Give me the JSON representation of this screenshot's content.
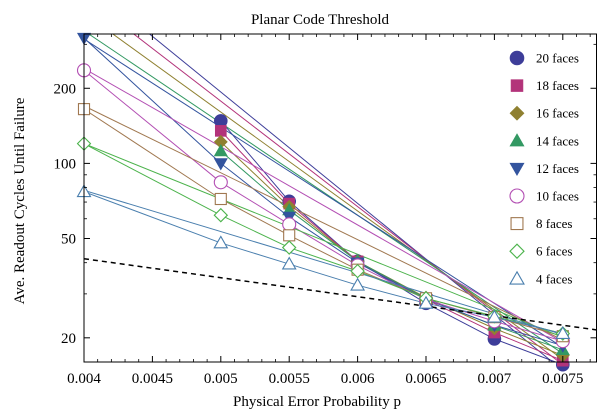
{
  "chart_data": {
    "type": "line",
    "title": "Planar Code Threshold",
    "xlabel": "Physical Error Probability p",
    "ylabel": "Ave. Readout Cycles Until Failure",
    "x_scale": "linear",
    "y_scale": "log",
    "xlim": [
      0.004,
      0.00775
    ],
    "ylim": [
      16,
      330
    ],
    "x_ticks": [
      0.004,
      0.0045,
      0.005,
      0.0055,
      0.006,
      0.0065,
      0.007,
      0.0075
    ],
    "x_tick_labels": [
      "0.004",
      "0.0045",
      "0.005",
      "0.0055",
      "0.006",
      "0.0065",
      "0.007",
      "0.0075"
    ],
    "y_ticks": [
      20,
      50,
      100,
      200
    ],
    "y_tick_labels": [
      "20",
      "50",
      "100",
      "200"
    ],
    "legend_position": "right",
    "series": [
      {
        "name": "20 faces",
        "color": "#3d3d99",
        "marker": "filled-circle",
        "fit": [
          [
            0.004,
            540
          ],
          [
            0.0075,
            14.8
          ]
        ],
        "x": [
          0.005,
          0.0055,
          0.006,
          0.0065,
          0.007,
          0.0075
        ],
        "y": [
          148,
          70.5,
          40.5,
          27.5,
          19.8,
          15.6
        ]
      },
      {
        "name": "18 faces",
        "color": "#b3337a",
        "marker": "filled-square",
        "fit": [
          [
            0.004,
            470
          ],
          [
            0.0075,
            15.6
          ]
        ],
        "x": [
          0.005,
          0.0055,
          0.006,
          0.0065,
          0.007,
          0.0075
        ],
        "y": [
          135,
          69,
          40.5,
          28.5,
          21,
          16.2
        ]
      },
      {
        "name": "16 faces",
        "color": "#8f8030",
        "marker": "filled-diamond",
        "fit": [
          [
            0.004,
            400
          ],
          [
            0.0075,
            16.4
          ]
        ],
        "x": [
          0.005,
          0.0055,
          0.006,
          0.0065,
          0.007,
          0.0075
        ],
        "y": [
          122,
          67,
          40.5,
          29,
          21.8,
          17
        ]
      },
      {
        "name": "14 faces",
        "color": "#339963",
        "marker": "filled-triangle-up",
        "fit": [
          [
            0.004,
            340
          ],
          [
            0.0075,
            17.3
          ]
        ],
        "x": [
          0.005,
          0.0055,
          0.006,
          0.0065,
          0.007,
          0.0075
        ],
        "y": [
          112,
          65,
          40.5,
          28.8,
          22.4,
          17.9
        ]
      },
      {
        "name": "12 faces",
        "color": "#33549e",
        "marker": "filled-triangle-down",
        "fit": [
          [
            0.004,
            315
          ],
          [
            0.0075,
            18.3
          ]
        ],
        "x": [
          0.004,
          0.005,
          0.0055,
          0.006,
          0.0065,
          0.007,
          0.0075
        ],
        "y": [
          318,
          100,
          61,
          40,
          28.5,
          22.5,
          18.6
        ]
      },
      {
        "name": "10 faces",
        "color": "#b34fb3",
        "marker": "open-circle",
        "fit": [
          [
            0.004,
            240
          ],
          [
            0.0075,
            19.2
          ]
        ],
        "x": [
          0.004,
          0.005,
          0.0055,
          0.006,
          0.0065,
          0.007,
          0.0075
        ],
        "y": [
          236,
          84,
          57,
          39,
          28.5,
          23.3,
          19.4
        ]
      },
      {
        "name": "8 faces",
        "color": "#a07850",
        "marker": "open-square",
        "fit": [
          [
            0.004,
            170
          ],
          [
            0.0075,
            19.6
          ]
        ],
        "x": [
          0.004,
          0.005,
          0.0055,
          0.006,
          0.0065,
          0.007,
          0.0075
        ],
        "y": [
          165,
          72,
          51.5,
          37.5,
          28.8,
          24.2,
          20.3
        ]
      },
      {
        "name": "6 faces",
        "color": "#4cb34c",
        "marker": "open-diamond",
        "fit": [
          [
            0.004,
            120
          ],
          [
            0.0075,
            20.1
          ]
        ],
        "x": [
          0.004,
          0.005,
          0.0055,
          0.006,
          0.0065,
          0.007,
          0.0075
        ],
        "y": [
          120,
          62,
          46,
          37,
          28.8,
          24.4,
          20.8
        ]
      },
      {
        "name": "4 faces",
        "color": "#4a7fae",
        "marker": "open-triangle-up",
        "fit": [
          [
            0.004,
            78
          ],
          [
            0.0075,
            20.6
          ]
        ],
        "x": [
          0.004,
          0.005,
          0.0055,
          0.006,
          0.0065,
          0.007,
          0.0075
        ],
        "y": [
          77,
          48,
          39.5,
          32.5,
          27.5,
          24.2,
          20.8
        ]
      }
    ],
    "reference_line": {
      "style": "dashed",
      "color": "#000000",
      "points": [
        [
          0.004,
          41.5
        ],
        [
          0.00775,
          21.5
        ]
      ]
    }
  }
}
